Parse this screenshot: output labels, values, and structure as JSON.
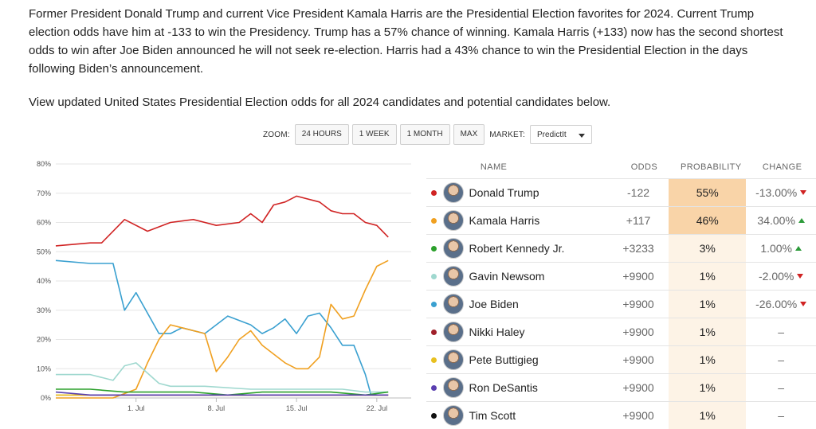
{
  "intro_paragraph": "Former President Donald Trump and current Vice President Kamala Harris are the Presidential Election favorites for 2024. Current Trump election odds have him at -133 to win the Presidency. Trump has a 57% chance of winning. Kamala Harris (+133) now has the second shortest odds to win after Joe Biden announced he will not seek re-election. Harris had a 43% chance to win the Presidential Election in the days following Biden’s announcement.",
  "view_text": "View updated United States Presidential Election odds for all 2024 candidates and potential candidates below.",
  "controls": {
    "zoom_label": "ZOOM:",
    "zoom_buttons": [
      "24 HOURS",
      "1 WEEK",
      "1 MONTH",
      "MAX"
    ],
    "market_label": "MARKET:",
    "market_value": "PredictIt"
  },
  "table": {
    "headers": {
      "name": "NAME",
      "odds": "ODDS",
      "probability": "PROBABILITY",
      "change": "CHANGE"
    },
    "rows": [
      {
        "name": "Donald Trump",
        "odds": "-122",
        "probability": "55%",
        "change": "-13.00%",
        "direction": "down",
        "color": "#d02323"
      },
      {
        "name": "Kamala Harris",
        "odds": "+117",
        "probability": "46%",
        "change": "34.00%",
        "direction": "up",
        "color": "#f0a020"
      },
      {
        "name": "Robert Kennedy Jr.",
        "odds": "+3233",
        "probability": "3%",
        "change": "1.00%",
        "direction": "up",
        "color": "#2ca02c"
      },
      {
        "name": "Gavin Newsom",
        "odds": "+9900",
        "probability": "1%",
        "change": "-2.00%",
        "direction": "down",
        "color": "#9fd8cf"
      },
      {
        "name": "Joe Biden",
        "odds": "+9900",
        "probability": "1%",
        "change": "-26.00%",
        "direction": "down",
        "color": "#3aa0d0"
      },
      {
        "name": "Nikki Haley",
        "odds": "+9900",
        "probability": "1%",
        "change": "–",
        "direction": "none",
        "color": "#a0202a"
      },
      {
        "name": "Pete Buttigieg",
        "odds": "+9900",
        "probability": "1%",
        "change": "–",
        "direction": "none",
        "color": "#e8c020"
      },
      {
        "name": "Ron DeSantis",
        "odds": "+9900",
        "probability": "1%",
        "change": "–",
        "direction": "none",
        "color": "#5a3fb0"
      },
      {
        "name": "Tim Scott",
        "odds": "+9900",
        "probability": "1%",
        "change": "–",
        "direction": "none",
        "color": "#111111"
      }
    ]
  },
  "chart_data": {
    "type": "line",
    "x_tick_labels": [
      "1. Jul",
      "8. Jul",
      "15. Jul",
      "22. Jul"
    ],
    "x_tick_days": [
      4,
      11,
      18,
      25
    ],
    "x_range_days": [
      -3,
      28
    ],
    "ylim": [
      0,
      80
    ],
    "y_ticks": [
      0,
      10,
      20,
      30,
      40,
      50,
      60,
      70,
      80
    ],
    "y_tick_suffix": "%",
    "grid": true,
    "series": [
      {
        "color": "#3aa0d0",
        "x": [
          -3,
          0,
          2,
          3,
          4,
          6,
          7,
          8,
          10,
          12,
          14,
          15,
          16,
          17,
          18,
          19,
          20,
          21,
          22,
          23,
          24,
          24.5
        ],
        "values": [
          47,
          46,
          46,
          30,
          36,
          22,
          22,
          24,
          22,
          28,
          25,
          22,
          24,
          27,
          22,
          28,
          29,
          24,
          18,
          18,
          8,
          1
        ]
      },
      {
        "color": "#d02323",
        "x": [
          -3,
          0,
          1,
          3,
          5,
          7,
          9,
          11,
          13,
          14,
          15,
          16,
          17,
          18,
          20,
          21,
          22,
          23,
          24,
          25,
          26
        ],
        "values": [
          52,
          53,
          53,
          61,
          57,
          60,
          61,
          59,
          60,
          63,
          60,
          66,
          67,
          69,
          67,
          64,
          63,
          63,
          60,
          59,
          55
        ]
      },
      {
        "color": "#f0a020",
        "x": [
          -3,
          0,
          2,
          4,
          5,
          6,
          7,
          8,
          10,
          11,
          12,
          13,
          14,
          15,
          16,
          17,
          18,
          19,
          20,
          21,
          22,
          23,
          24,
          25,
          26
        ],
        "values": [
          0,
          0,
          0,
          3,
          12,
          20,
          25,
          24,
          22,
          9,
          14,
          20,
          23,
          18,
          15,
          12,
          10,
          10,
          14,
          32,
          27,
          28,
          37,
          45,
          47
        ]
      },
      {
        "color": "#9fd8cf",
        "x": [
          -3,
          0,
          2,
          3,
          4,
          6,
          7,
          10,
          14,
          18,
          22,
          24,
          26
        ],
        "values": [
          8,
          8,
          6,
          11,
          12,
          5,
          4,
          4,
          3,
          3,
          3,
          2,
          2
        ]
      },
      {
        "color": "#2ca02c",
        "x": [
          -3,
          0,
          3,
          6,
          9,
          12,
          15,
          18,
          21,
          24,
          26
        ],
        "values": [
          3,
          3,
          2,
          2,
          2,
          1,
          2,
          2,
          2,
          1,
          2
        ]
      },
      {
        "color": "#a0202a",
        "x": [
          -3,
          5,
          10,
          15,
          20,
          26
        ],
        "values": [
          1,
          1,
          1,
          1,
          1,
          1
        ]
      },
      {
        "color": "#e8c020",
        "x": [
          -3,
          5,
          10,
          15,
          20,
          26
        ],
        "values": [
          1,
          1,
          1,
          1,
          1,
          1
        ]
      },
      {
        "color": "#5a3fb0",
        "x": [
          -3,
          0,
          5,
          10,
          15,
          20,
          26
        ],
        "values": [
          2,
          1,
          1,
          1,
          1,
          1,
          1
        ]
      }
    ]
  }
}
